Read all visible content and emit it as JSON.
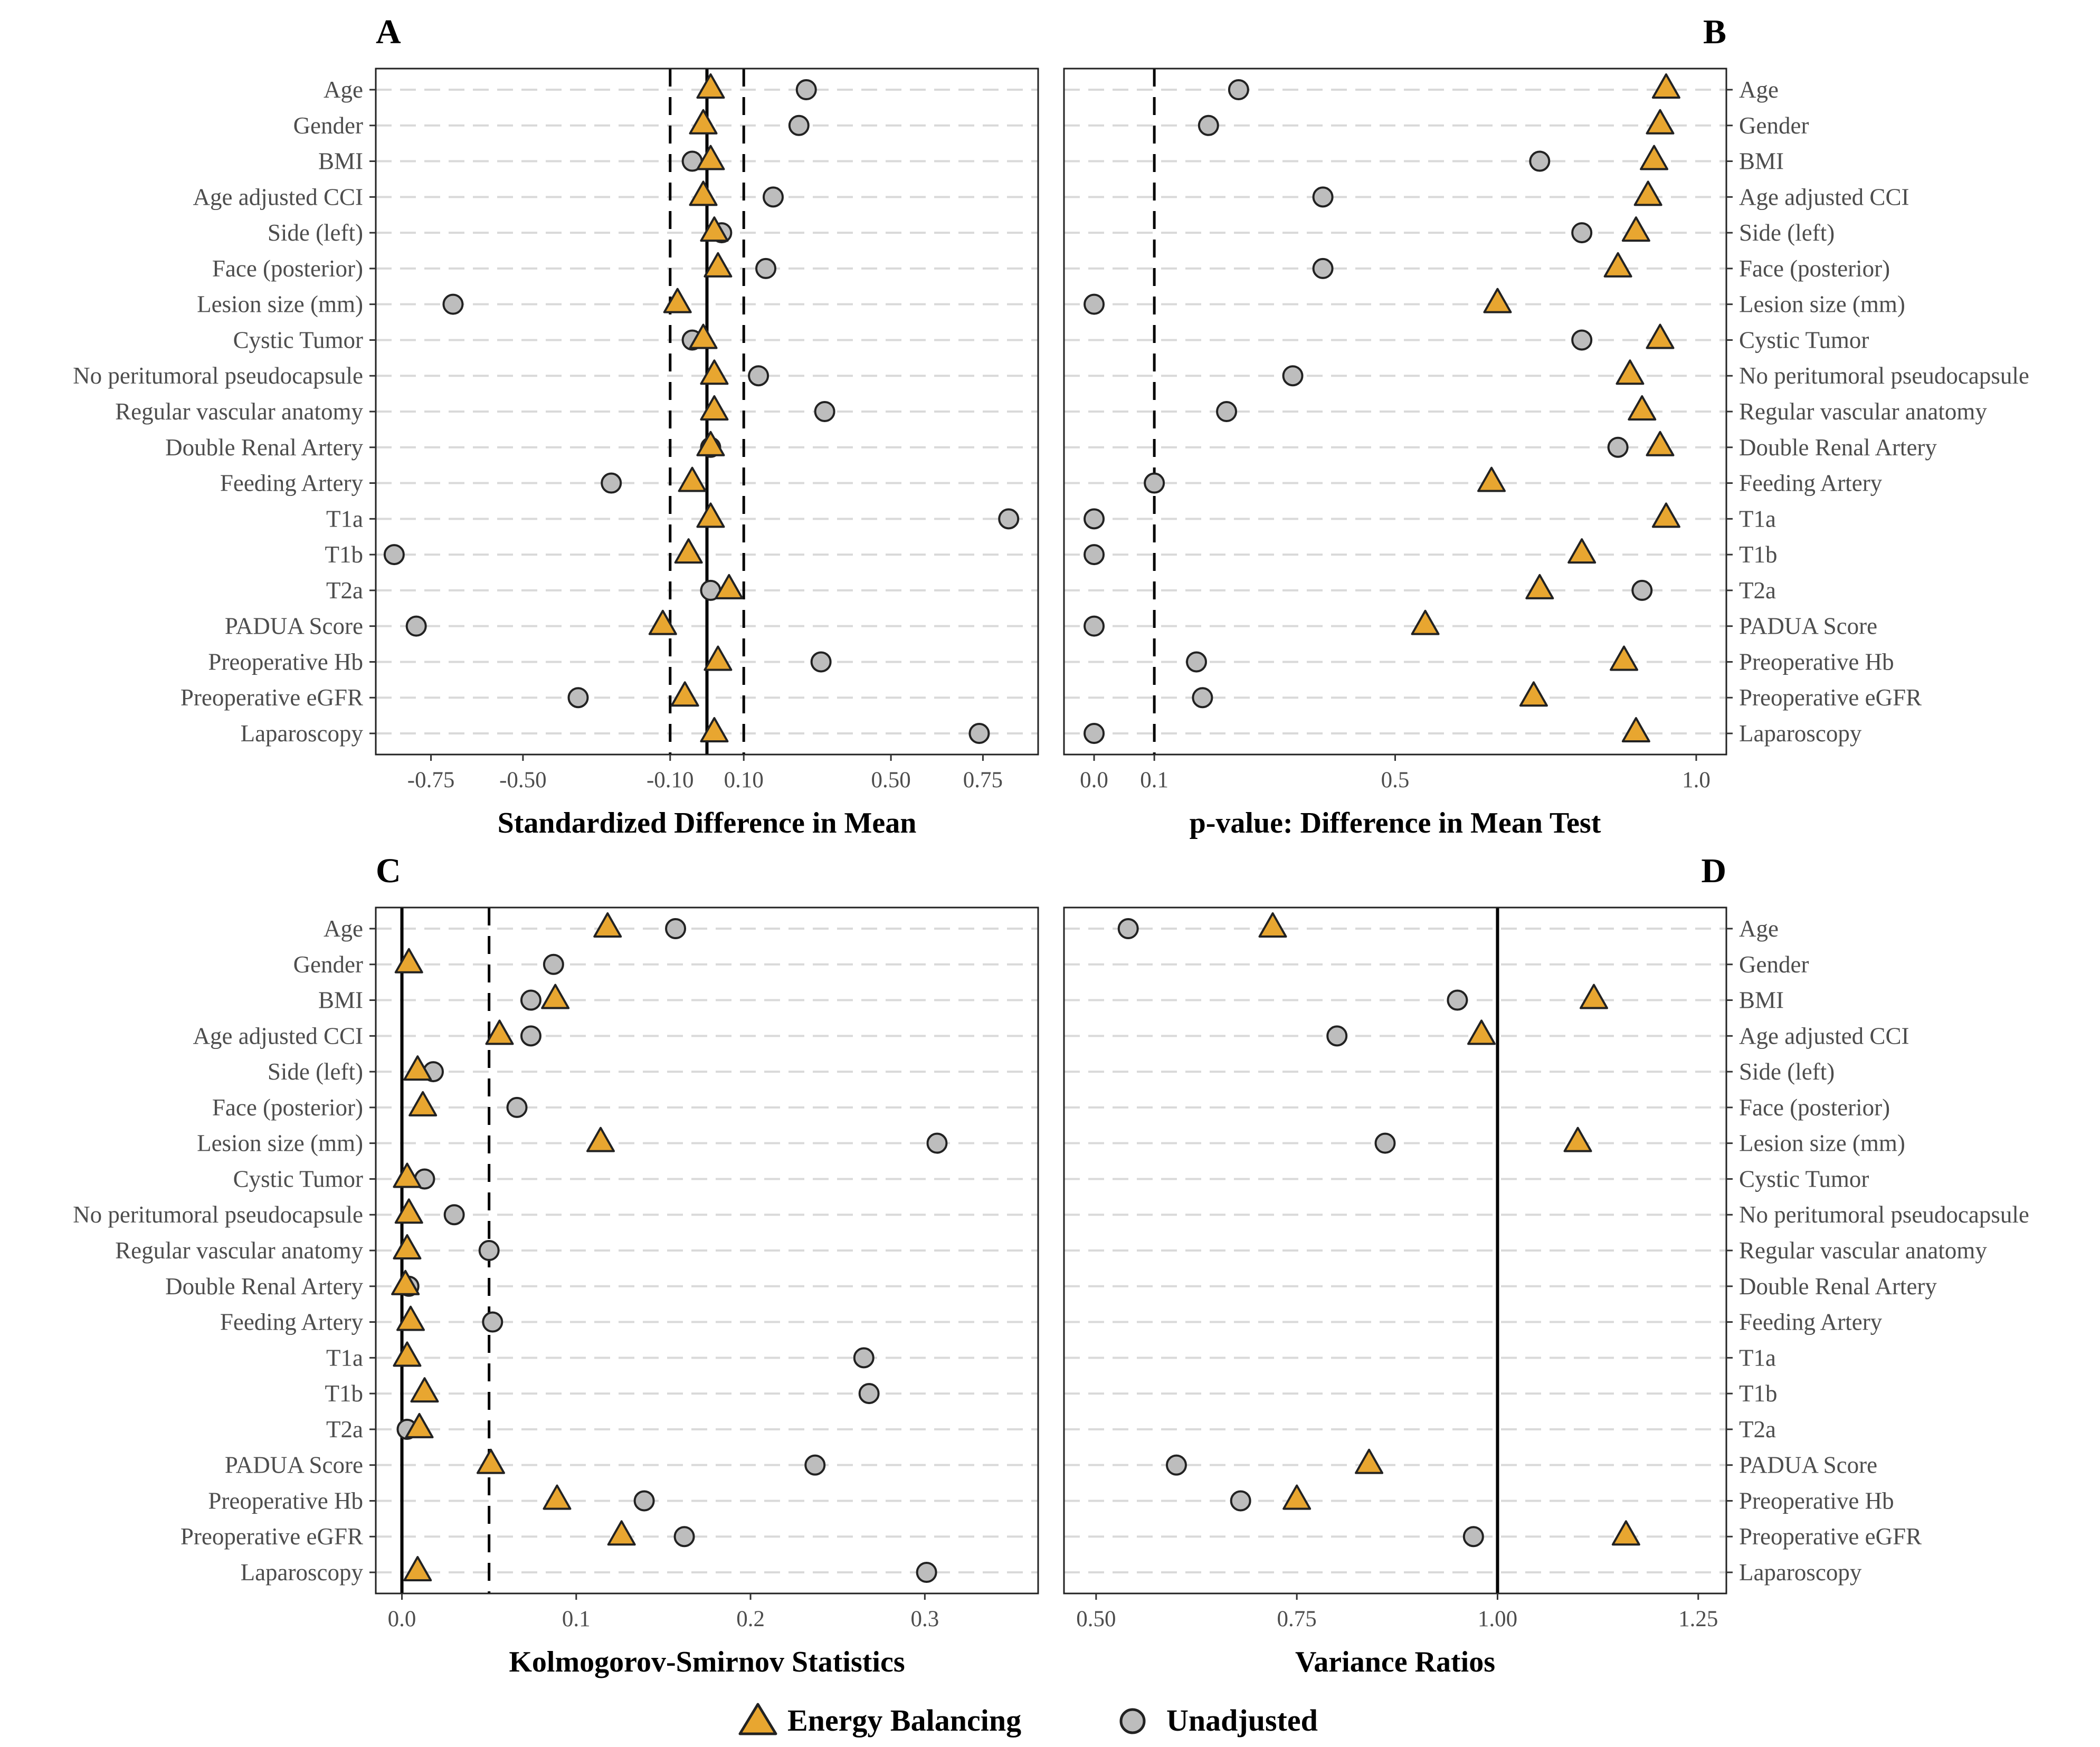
{
  "colors": {
    "adjusted": "#e8a630",
    "unadjusted": "#bdbdbd",
    "outline": "#222222",
    "grid": "#d9d9d9"
  },
  "legend": {
    "adjusted_label": "Energy Balancing",
    "unadjusted_label": "Unadjusted",
    "adjusted_icon": "triangle-marker-icon",
    "unadjusted_icon": "circle-marker-icon"
  },
  "variables": [
    "Age",
    "Gender",
    "BMI",
    "Age adjusted CCI",
    "Side (left)",
    "Face (posterior)",
    "Lesion size (mm)",
    "Cystic Tumor",
    "No peritumoral pseudocapsule",
    "Regular vascular anatomy",
    "Double Renal Artery",
    "Feeding Artery",
    "T1a",
    "T1b",
    "T2a",
    "PADUA Score",
    "Preoperative Hb",
    "Preoperative eGFR",
    "Laparoscopy"
  ],
  "chart_data": [
    {
      "panel": "A",
      "type": "scatter",
      "xlabel": "Standardized Difference in Mean",
      "xlim": [
        -0.9,
        0.9
      ],
      "ticks": [
        -0.75,
        -0.5,
        -0.1,
        0.1,
        0.5,
        0.75
      ],
      "tick_labels": [
        "-0.75",
        "-0.50",
        "-0.10",
        "0.10",
        "0.50",
        "0.75"
      ],
      "reference_lines": [
        {
          "value": 0,
          "style": "solid"
        },
        {
          "value": -0.1,
          "style": "dashed"
        },
        {
          "value": 0.1,
          "style": "dashed"
        }
      ],
      "labels_side": "left",
      "series": [
        {
          "name": "Unadjusted",
          "values": [
            0.27,
            0.25,
            -0.04,
            0.18,
            0.04,
            0.16,
            -0.69,
            -0.04,
            0.14,
            0.32,
            0.01,
            -0.26,
            0.82,
            -0.85,
            0.01,
            -0.79,
            0.31,
            -0.35,
            0.74
          ]
        },
        {
          "name": "Energy Balancing",
          "values": [
            0.01,
            -0.01,
            0.01,
            -0.01,
            0.02,
            0.03,
            -0.08,
            -0.01,
            0.02,
            0.02,
            0.01,
            -0.04,
            0.01,
            -0.05,
            0.06,
            -0.12,
            0.03,
            -0.06,
            0.02
          ]
        }
      ]
    },
    {
      "panel": "B",
      "type": "scatter",
      "xlabel": "p-value: Difference in Mean Test",
      "xlim": [
        -0.05,
        1.05
      ],
      "ticks": [
        0,
        0.1,
        0.5,
        1.0
      ],
      "tick_labels": [
        "0.0",
        "0.1",
        "0.5",
        "1.0"
      ],
      "reference_lines": [
        {
          "value": 0.1,
          "style": "dashed"
        }
      ],
      "labels_side": "right",
      "series": [
        {
          "name": "Unadjusted",
          "values": [
            0.24,
            0.19,
            0.74,
            0.38,
            0.81,
            0.38,
            0.0,
            0.81,
            0.33,
            0.22,
            0.87,
            0.1,
            0.0,
            0.0,
            0.91,
            0.0,
            0.17,
            0.18,
            0.0
          ]
        },
        {
          "name": "Energy Balancing",
          "values": [
            0.95,
            0.94,
            0.93,
            0.92,
            0.9,
            0.87,
            0.67,
            0.94,
            0.89,
            0.91,
            0.94,
            0.66,
            0.95,
            0.81,
            0.74,
            0.55,
            0.88,
            0.73,
            0.9
          ]
        }
      ]
    },
    {
      "panel": "C",
      "type": "scatter",
      "xlabel": "Kolmogorov-Smirnov Statistics",
      "xlim": [
        -0.015,
        0.365
      ],
      "ticks": [
        0,
        0.1,
        0.2,
        0.3
      ],
      "tick_labels": [
        "0.0",
        "0.1",
        "0.2",
        "0.3"
      ],
      "reference_lines": [
        {
          "value": 0,
          "style": "solid"
        },
        {
          "value": 0.05,
          "style": "dashed"
        }
      ],
      "labels_side": "left",
      "series": [
        {
          "name": "Unadjusted",
          "values": [
            0.157,
            0.087,
            0.074,
            0.074,
            0.018,
            0.066,
            0.307,
            0.013,
            0.03,
            0.05,
            0.004,
            0.052,
            0.265,
            0.268,
            0.003,
            0.237,
            0.139,
            0.162,
            0.301
          ]
        },
        {
          "name": "Energy Balancing",
          "values": [
            0.118,
            0.004,
            0.088,
            0.056,
            0.009,
            0.012,
            0.114,
            0.003,
            0.004,
            0.003,
            0.002,
            0.005,
            0.003,
            0.013,
            0.01,
            0.051,
            0.089,
            0.126,
            0.009
          ]
        }
      ]
    },
    {
      "panel": "D",
      "type": "scatter",
      "xlabel": "Variance Ratios",
      "xlim": [
        0.46,
        1.285
      ],
      "ticks": [
        0.5,
        0.75,
        1.0,
        1.25
      ],
      "tick_labels": [
        "0.50",
        "0.75",
        "1.00",
        "1.25"
      ],
      "reference_lines": [
        {
          "value": 1.0,
          "style": "solid"
        }
      ],
      "labels_side": "right",
      "series": [
        {
          "name": "Unadjusted",
          "values": [
            0.54,
            null,
            0.95,
            0.8,
            null,
            null,
            0.86,
            null,
            null,
            null,
            null,
            null,
            null,
            null,
            null,
            0.6,
            0.68,
            0.97,
            null
          ]
        },
        {
          "name": "Energy Balancing",
          "values": [
            0.72,
            null,
            1.12,
            0.98,
            null,
            null,
            1.1,
            null,
            null,
            null,
            null,
            null,
            null,
            null,
            null,
            0.84,
            0.75,
            1.16,
            null
          ]
        }
      ]
    }
  ]
}
